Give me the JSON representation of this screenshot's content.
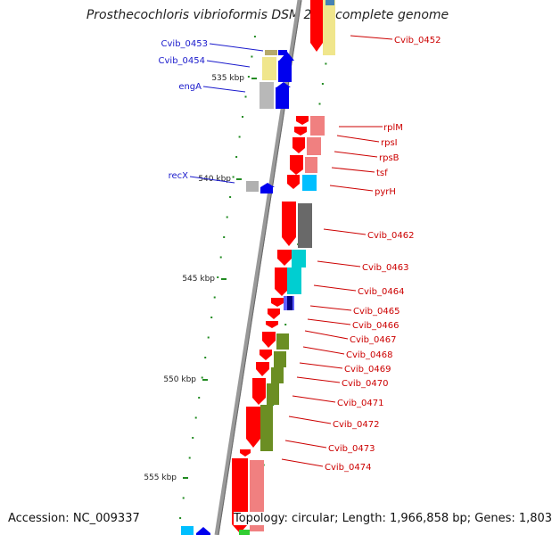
{
  "title": "Prosthecochloris vibrioformis DSM 265, complete genome",
  "footer": {
    "accession": "Accession: NC_009337",
    "summary": "Topology: circular; Length: 1,966,858 bp; Genes: 1,803"
  },
  "colors": {
    "forward_gene": "#0000ee",
    "reverse_gene": "#ff0000",
    "label_forward": "#1a1acc",
    "label_reverse": "#cc0000",
    "backbone": "#888888",
    "tick": "#228b22"
  },
  "scale_ticks": [
    {
      "label": "535 kbp",
      "kbp": 535
    },
    {
      "label": "540 kbp",
      "kbp": 540
    },
    {
      "label": "545 kbp",
      "kbp": 545
    },
    {
      "label": "550 kbp",
      "kbp": 550
    },
    {
      "label": "555 kbp",
      "kbp": 555
    }
  ],
  "genes_forward": [
    {
      "label": "Cvib_0453",
      "kbp": 533.8,
      "cog_color": "#b5a96a"
    },
    {
      "label": "Cvib_0454",
      "kbp": 534.4,
      "cog_color": "#f0e68c"
    },
    {
      "label": "engA",
      "kbp": 535.6,
      "cog_color": "#b0b0b0"
    },
    {
      "label": "recX",
      "kbp": 540.1,
      "cog_color": "#a9a9a9"
    }
  ],
  "genes_reverse": [
    {
      "label": "Cvib_0452",
      "kbp": 533.0,
      "cog_color": "#f0e68c"
    },
    {
      "label": "rplM",
      "kbp": 537.6,
      "cog_color": "#f08080"
    },
    {
      "label": "rpsI",
      "kbp": 538.1,
      "cog_color": "#f08080"
    },
    {
      "label": "rpsB",
      "kbp": 538.8,
      "cog_color": "#f08080"
    },
    {
      "label": "tsf",
      "kbp": 539.4,
      "cog_color": "#f08080"
    },
    {
      "label": "pyrH",
      "kbp": 540.1,
      "cog_color": "#00bfff"
    },
    {
      "label": "Cvib_0462",
      "kbp": 542.3,
      "cog_color": "#696969"
    },
    {
      "label": "Cvib_0463",
      "kbp": 543.9,
      "cog_color": "#00ced1"
    },
    {
      "label": "Cvib_0464",
      "kbp": 545.0,
      "cog_color": "#00ced1"
    },
    {
      "label": "Cvib_0465",
      "kbp": 545.8,
      "cog_color": "#000080"
    },
    {
      "label": "Cvib_0466",
      "kbp": 546.3,
      "cog_color": ""
    },
    {
      "label": "Cvib_0467",
      "kbp": 546.9,
      "cog_color": ""
    },
    {
      "label": "Cvib_0468",
      "kbp": 547.7,
      "cog_color": "#6b8e23"
    },
    {
      "label": "Cvib_0469",
      "kbp": 548.5,
      "cog_color": "#6b8e23"
    },
    {
      "label": "Cvib_0470",
      "kbp": 549.2,
      "cog_color": "#6b8e23"
    },
    {
      "label": "Cvib_0471",
      "kbp": 550.0,
      "cog_color": "#6b8e23"
    },
    {
      "label": "Cvib_0472",
      "kbp": 551.0,
      "cog_color": "#6b8e23"
    },
    {
      "label": "Cvib_0473",
      "kbp": 552.6,
      "cog_color": ""
    },
    {
      "label": "Cvib_0474",
      "kbp": 553.9,
      "cog_color": "#f08080"
    }
  ]
}
